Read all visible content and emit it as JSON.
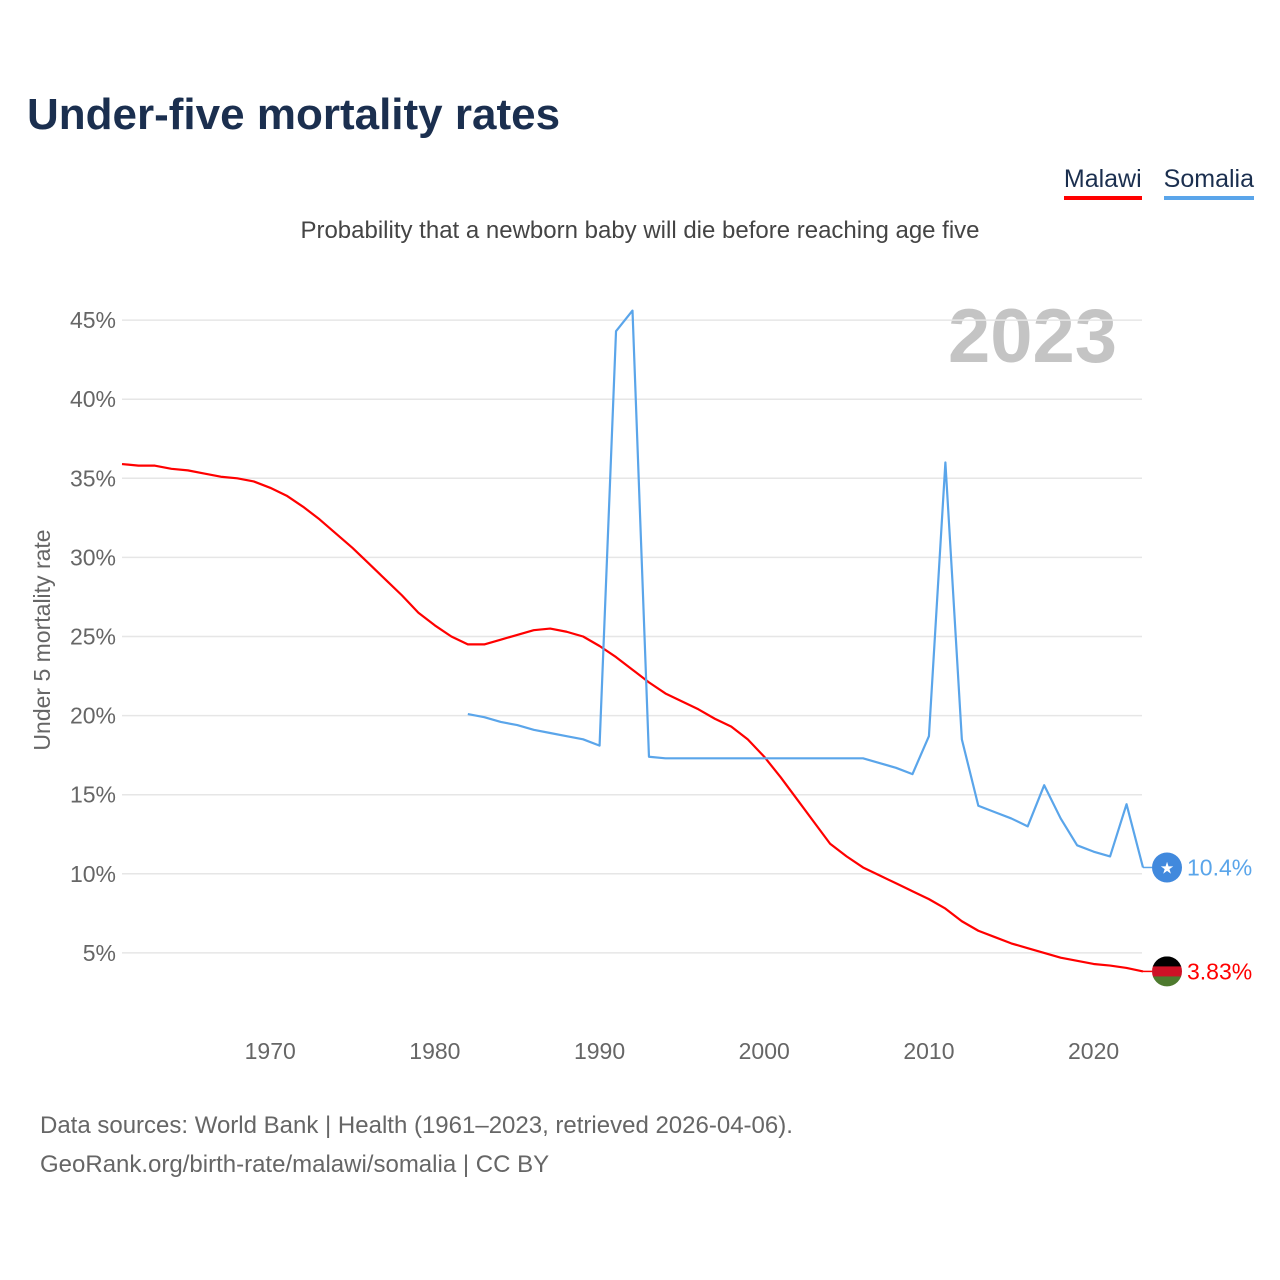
{
  "title": "Under-five mortality rates",
  "subtitle": "Probability that a newborn baby will die before reaching age five",
  "year_label": "2023",
  "legend": [
    {
      "name": "Malawi",
      "color": "#ff0000"
    },
    {
      "name": "Somalia",
      "color": "#5aa5ea"
    }
  ],
  "source_lines": [
    "Data sources: World Bank | Health (1961–2023, retrieved 2026-04-06).",
    "GeoRank.org/birth-rate/malawi/somalia | CC BY"
  ],
  "chart_data": {
    "type": "line",
    "title": "Under-five mortality rates",
    "ylabel": "Under 5 mortality rate",
    "xlabel": "",
    "xlim": [
      1961,
      2023
    ],
    "ylim": [
      0,
      47
    ],
    "yticks": [
      5,
      10,
      15,
      20,
      25,
      30,
      35,
      40,
      45
    ],
    "ytick_labels": [
      "5%",
      "10%",
      "15%",
      "20%",
      "25%",
      "30%",
      "35%",
      "40%",
      "45%"
    ],
    "xticks": [
      1970,
      1980,
      1990,
      2000,
      2010,
      2020
    ],
    "xtick_labels": [
      "1970",
      "1980",
      "1990",
      "2000",
      "2010",
      "2020"
    ],
    "grid": true,
    "legend_position": "top-right",
    "series": [
      {
        "name": "Malawi",
        "color": "#ff0000",
        "end_label": "3.83%",
        "start_year": 1961,
        "values": [
          35.9,
          35.8,
          35.8,
          35.6,
          35.5,
          35.3,
          35.1,
          35.0,
          34.8,
          34.4,
          33.9,
          33.2,
          32.4,
          31.5,
          30.6,
          29.6,
          28.6,
          27.6,
          26.5,
          25.7,
          25.0,
          24.5,
          24.5,
          24.8,
          25.1,
          25.4,
          25.5,
          25.3,
          25.0,
          24.4,
          23.7,
          22.9,
          22.1,
          21.4,
          20.9,
          20.4,
          19.8,
          19.3,
          18.5,
          17.4,
          16.1,
          14.7,
          13.3,
          11.9,
          11.1,
          10.4,
          9.9,
          9.4,
          8.9,
          8.4,
          7.8,
          7.0,
          6.4,
          6.0,
          5.6,
          5.3,
          5.0,
          4.7,
          4.5,
          4.3,
          4.2,
          4.05,
          3.83
        ]
      },
      {
        "name": "Somalia",
        "color": "#5aa5ea",
        "end_label": "10.4%",
        "start_year": 1982,
        "values": [
          20.1,
          19.9,
          19.6,
          19.4,
          19.1,
          18.9,
          18.7,
          18.5,
          18.1,
          44.3,
          45.6,
          17.4,
          17.3,
          17.3,
          17.3,
          17.3,
          17.3,
          17.3,
          17.3,
          17.3,
          17.3,
          17.3,
          17.3,
          17.3,
          17.3,
          17.0,
          16.7,
          16.3,
          18.7,
          36.0,
          18.5,
          14.3,
          13.9,
          13.5,
          13.0,
          15.6,
          13.5,
          11.8,
          11.4,
          11.1,
          14.4,
          10.4
        ]
      }
    ]
  }
}
